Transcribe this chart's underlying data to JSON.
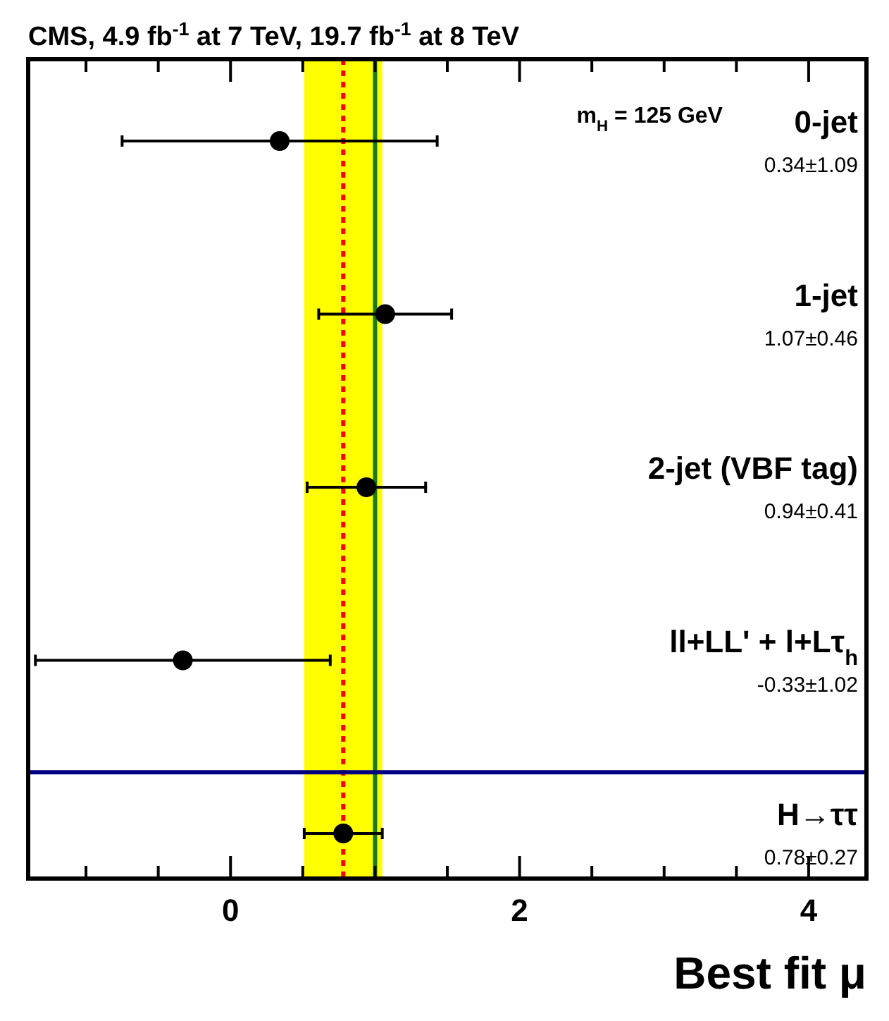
{
  "chart_data": {
    "type": "scatter",
    "orientation": "horizontal",
    "title": "CMS, 4.9 fb$^{-1}$ at 7 TeV, 19.7 fb$^{-1}$ at 8 TeV",
    "xlabel": "Best fit μ",
    "categories": [
      "0-jet",
      "1-jet",
      "2-jet (VBF tag)",
      "ll+LL' + l+Lτ$_{h}$",
      "H→ττ"
    ],
    "series": [
      {
        "color": "#000000",
        "values": [
          0.34,
          1.07,
          0.94,
          -0.33,
          0.78
        ],
        "errors": [
          1.09,
          0.46,
          0.41,
          1.02,
          0.27
        ]
      }
    ],
    "marker": "circle",
    "grid": false,
    "xlim": [
      -1.4,
      4.4
    ],
    "xticks": [
      {
        "value": -1,
        "label": null
      },
      {
        "value": -0.5,
        "label": null
      },
      0,
      {
        "value": 0.5,
        "label": null
      },
      {
        "value": 1,
        "label": null
      },
      {
        "value": 1.5,
        "label": null
      },
      2,
      {
        "value": 2.5,
        "label": null
      },
      {
        "value": 3,
        "label": null
      },
      {
        "value": 3.5,
        "label": null
      },
      4
    ],
    "bands": [
      {
        "axis": "x",
        "from": 0.51,
        "to": 1.05,
        "color": "#ffff00"
      }
    ],
    "ref_lines": [
      {
        "axis": "x",
        "value": 0.78,
        "color": "#ff0000",
        "line_style": "dotted"
      },
      {
        "axis": "x",
        "value": 1,
        "color": "#1a7a1a",
        "line_style": "solid"
      }
    ],
    "annotations": [
      "m$_{H}$ = 125 GeV",
      "0.34±1.09",
      "1.07±0.46",
      "0.94±0.41",
      "-0.33±1.02",
      "0.78±0.27"
    ]
  }
}
